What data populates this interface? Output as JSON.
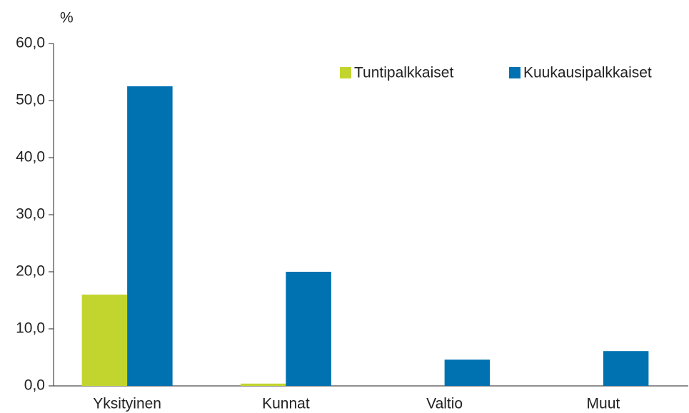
{
  "chart_data": {
    "type": "bar",
    "y_label": "%",
    "categories": [
      "Yksityinen",
      "Kunnat",
      "Valtio",
      "Muut"
    ],
    "series": [
      {
        "name": "Tuntipalkkaiset",
        "color": "#c2d52f",
        "values": [
          16.0,
          0.4,
          0,
          0
        ]
      },
      {
        "name": "Kuukausipalkkaiset",
        "color": "#0071b1",
        "values": [
          52.5,
          20.0,
          4.6,
          6.1
        ]
      }
    ],
    "ylim": [
      0,
      60
    ],
    "yticks": [
      {
        "value": 0,
        "label": "0,0"
      },
      {
        "value": 10,
        "label": "10,0"
      },
      {
        "value": 20,
        "label": "20,0"
      },
      {
        "value": 30,
        "label": "30,0"
      },
      {
        "value": 40,
        "label": "40,0"
      },
      {
        "value": 50,
        "label": "50,0"
      },
      {
        "value": 60,
        "label": "60,0"
      }
    ],
    "grid": false,
    "legend": "top-right"
  }
}
